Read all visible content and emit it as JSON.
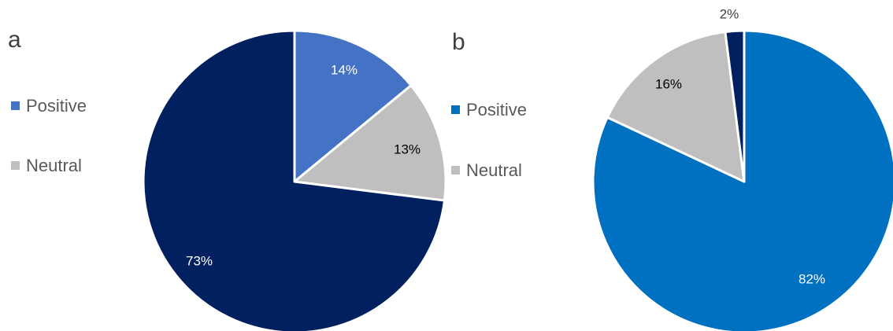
{
  "chart_data": [
    {
      "type": "pie",
      "panel_label": "a",
      "slices": [
        {
          "label": "Positive",
          "value": 14,
          "display": "14%",
          "color": "#4472C4",
          "label_color": "#ffffff",
          "in_legend": true
        },
        {
          "label": "Neutral",
          "value": 13,
          "display": "13%",
          "color": "#BFBFBF",
          "label_color": "#000000",
          "in_legend": true
        },
        {
          "label": "",
          "value": 73,
          "display": "73%",
          "color": "#002060",
          "label_color": "#ffffff",
          "in_legend": false
        }
      ],
      "legend_position": "left"
    },
    {
      "type": "pie",
      "panel_label": "b",
      "slices": [
        {
          "label": "Positive",
          "value": 82,
          "display": "82%",
          "color": "#0070C0",
          "label_color": "#ffffff",
          "in_legend": true
        },
        {
          "label": "Neutral",
          "value": 16,
          "display": "16%",
          "color": "#BFBFBF",
          "label_color": "#000000",
          "in_legend": true
        },
        {
          "label": "",
          "value": 2,
          "display": "2%",
          "color": "#002060",
          "label_color": "#404040",
          "in_legend": false
        }
      ],
      "legend_position": "left"
    }
  ]
}
